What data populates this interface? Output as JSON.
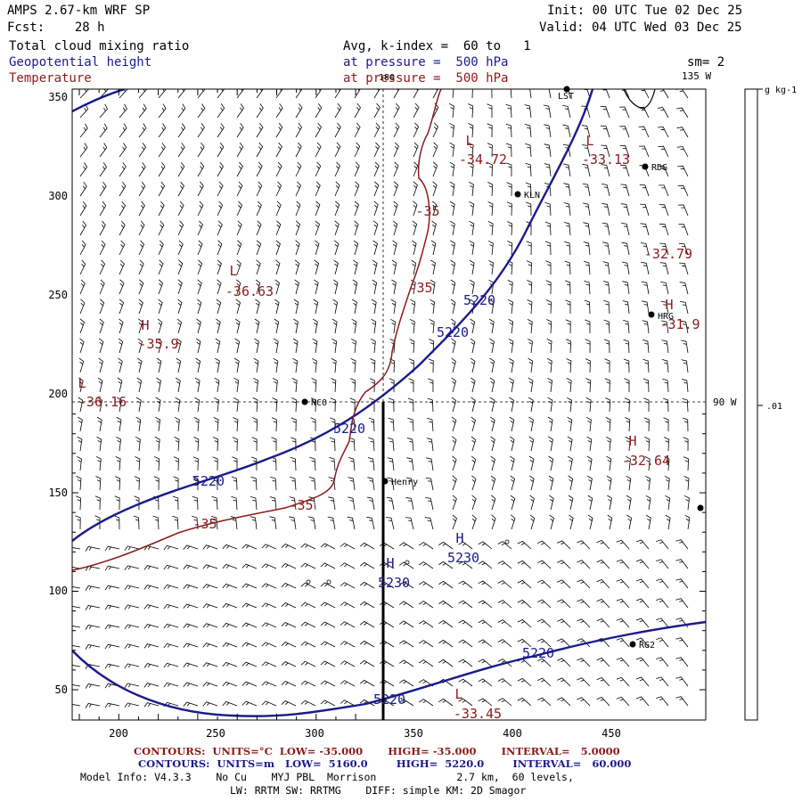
{
  "header": {
    "model": "AMPS 2.67-km WRF SP",
    "fcst": "Fcst:    28 h",
    "init": "Init: 00 UTC Tue 02 Dec 25",
    "valid": "Valid: 04 UTC Wed 03 Dec 25",
    "field1": "Total cloud mixing ratio",
    "field2": "Geopotential height",
    "field3": "Temperature",
    "avg": "Avg, k-index =  60 to   1",
    "pres1": "at pressure =  500 hPa",
    "pres2": "at pressure =  500 hPa",
    "sm": "sm= 2",
    "lon_135": "135 W",
    "lon_90": "90 W",
    "lon_180": "180"
  },
  "colorbar": {
    "unit": "g kg-1",
    "tick": ".01"
  },
  "axes": {
    "xticks": [
      "200",
      "250",
      "300",
      "350",
      "400",
      "450"
    ],
    "yticks": [
      "50",
      "100",
      "150",
      "200",
      "250",
      "300",
      "350"
    ]
  },
  "stations": [
    {
      "id": "LST",
      "label": "LST"
    },
    {
      "id": "RDG",
      "label": "RDG"
    },
    {
      "id": "KLN",
      "label": "KLN"
    },
    {
      "id": "HRG",
      "label": "HRG"
    },
    {
      "id": "NCO",
      "label": "NCO"
    },
    {
      "id": "HENRY",
      "label": "Henry"
    },
    {
      "id": "RG2",
      "label": "RG2"
    }
  ],
  "extrema": {
    "L1": "L",
    "L1v": "-34.72",
    "L2": "L",
    "L2v": "-33.13",
    "L3": "L",
    "L3v": "-36.63",
    "H1": "H",
    "H1v": "-35.9",
    "L4": "L",
    "L4v": "-36.16",
    "H2": "H",
    "H2v": "-31.9",
    "H3": "H",
    "H3v": "-32.64",
    "H4": "H",
    "H4v": "5230",
    "H5": "H",
    "H5v": "5230",
    "L5": "L",
    "L5v": "-33.45",
    "tv": "-32.79"
  },
  "contour_labels": {
    "z1": "5220",
    "z2": "5220",
    "z3": "5220",
    "z4": "5220",
    "z5": "5220",
    "z6": "5220",
    "t1": "-35",
    "t2": "-35",
    "t3": "-35",
    "t4": "-35"
  },
  "footer": {
    "l1": "CONTOURS:  UNITS=°C  LOW= -35.000       HIGH= -35.000       INTERVAL=   5.0000",
    "l2": "CONTOURS:  UNITS=m   LOW=  5160.0        HIGH=  5220.0        INTERVAL=   60.000",
    "l3": "Model Info: V4.3.3    No Cu    MYJ PBL  Morrison             2.7 km,  60 levels,",
    "l4": "LW: RRTM SW: RRTMG    DIFF: simple KM: 2D Smagor"
  },
  "colors": {
    "height": "#1a1a8c",
    "temperature": "#8b1a1a",
    "axis": "#000000"
  }
}
